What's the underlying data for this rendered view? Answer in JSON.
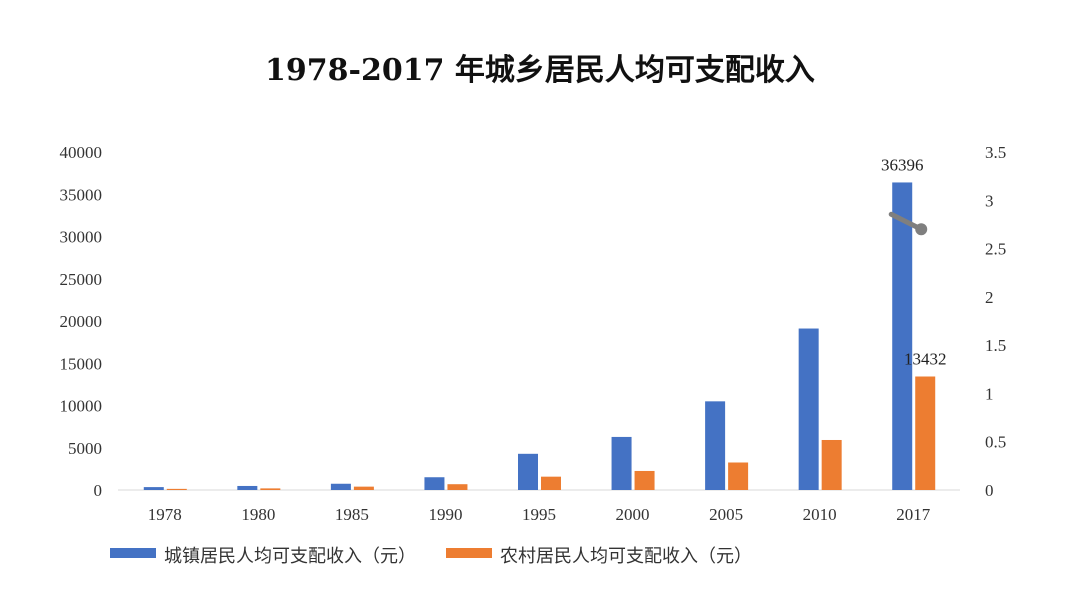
{
  "chart_data": {
    "type": "bar",
    "title": "1978-2017 年城乡居民人均可支配收入",
    "categories": [
      "1978",
      "1980",
      "1985",
      "1990",
      "1995",
      "2000",
      "2005",
      "2010",
      "2017"
    ],
    "series": [
      {
        "name": "城镇居民人均可支配收入（元）",
        "color": "#4472C4",
        "values": [
          343,
          478,
          739,
          1510,
          4283,
          6280,
          10493,
          19109,
          36396
        ]
      },
      {
        "name": "农村居民人均可支配收入（元）",
        "color": "#ED7D31",
        "values": [
          134,
          191,
          398,
          686,
          1578,
          2253,
          3255,
          5919,
          13432
        ]
      }
    ],
    "y_left": {
      "ylim": [
        0,
        40000
      ],
      "ticks": [
        "0",
        "5000",
        "10000",
        "15000",
        "20000",
        "25000",
        "30000",
        "35000",
        "40000"
      ]
    },
    "y_right": {
      "ylim": [
        0,
        3.5
      ],
      "ticks": [
        "0",
        "0.5",
        "1",
        "1.5",
        "2",
        "2.5",
        "3",
        "3.5"
      ]
    },
    "data_labels": [
      {
        "series": 0,
        "category": "2017",
        "text": "36396"
      },
      {
        "series": 1,
        "category": "2017",
        "text": "13432"
      }
    ],
    "ratio_marker": {
      "category": "2017",
      "value": 2.71,
      "color": "#7f7f7f"
    },
    "legend_position": "bottom",
    "grid": false
  }
}
